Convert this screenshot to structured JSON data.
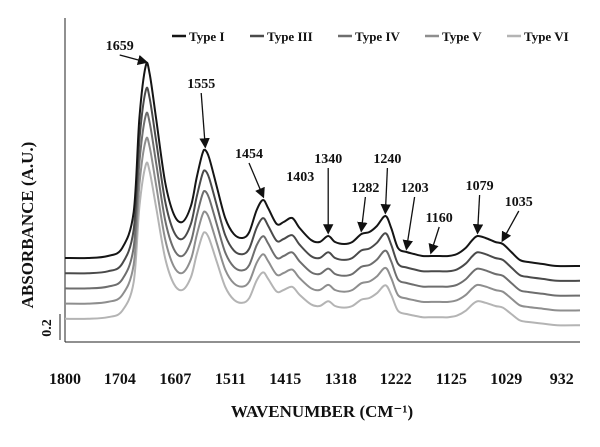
{
  "chart_data": {
    "type": "line",
    "title": "",
    "xlabel": "WAVENUMBER (CM⁻¹)",
    "ylabel": "ABSORBANCE (A.U.)",
    "scale_label": "0.2",
    "x_reversed": true,
    "xlim": [
      1800,
      900
    ],
    "x_ticks": [
      "1800",
      "1704",
      "1607",
      "1511",
      "1415",
      "1318",
      "1222",
      "1125",
      "1029",
      "932"
    ],
    "x_tick_values": [
      1800,
      1704,
      1607,
      1511,
      1415,
      1318,
      1222,
      1125,
      1029,
      932
    ],
    "legend_position": "top-right",
    "series": [
      {
        "name": "Type I",
        "color": "#151515",
        "offset": 0
      },
      {
        "name": "Type III",
        "color": "#4a4a4a",
        "offset": 1
      },
      {
        "name": "Type IV",
        "color": "#6e6e6e",
        "offset": 2
      },
      {
        "name": "Type V",
        "color": "#8e8e8e",
        "offset": 3
      },
      {
        "name": "Type VI",
        "color": "#b4b4b4",
        "offset": 4
      }
    ],
    "profile_x": [
      1800,
      1760,
      1725,
      1700,
      1680,
      1670,
      1659,
      1652,
      1640,
      1625,
      1610,
      1595,
      1580,
      1570,
      1560,
      1555,
      1548,
      1535,
      1520,
      1505,
      1490,
      1478,
      1465,
      1454,
      1445,
      1430,
      1418,
      1403,
      1390,
      1370,
      1355,
      1340,
      1328,
      1312,
      1298,
      1282,
      1268,
      1255,
      1240,
      1230,
      1218,
      1203,
      1190,
      1175,
      1160,
      1145,
      1130,
      1115,
      1100,
      1088,
      1079,
      1065,
      1048,
      1035,
      1020,
      1005,
      990,
      965,
      940,
      900
    ],
    "profile_y": [
      0.02,
      0.02,
      0.03,
      0.07,
      0.25,
      0.72,
      0.98,
      0.94,
      0.7,
      0.4,
      0.24,
      0.2,
      0.28,
      0.42,
      0.54,
      0.56,
      0.52,
      0.38,
      0.22,
      0.14,
      0.12,
      0.15,
      0.26,
      0.31,
      0.27,
      0.19,
      0.2,
      0.22,
      0.17,
      0.11,
      0.1,
      0.13,
      0.1,
      0.09,
      0.1,
      0.14,
      0.15,
      0.18,
      0.23,
      0.17,
      0.07,
      0.05,
      0.04,
      0.03,
      0.03,
      0.03,
      0.03,
      0.04,
      0.07,
      0.11,
      0.13,
      0.12,
      0.1,
      0.09,
      0.05,
      0.01,
      0.0,
      -0.01,
      -0.02,
      -0.02
    ],
    "annotations": [
      {
        "label": "1659",
        "x": 1659
      },
      {
        "label": "1555",
        "x": 1555
      },
      {
        "label": "1454",
        "x": 1454
      },
      {
        "label": "1403",
        "x": 1403
      },
      {
        "label": "1340",
        "x": 1340
      },
      {
        "label": "1282",
        "x": 1282
      },
      {
        "label": "1240",
        "x": 1240
      },
      {
        "label": "1203",
        "x": 1203
      },
      {
        "label": "1160",
        "x": 1160
      },
      {
        "label": "1079",
        "x": 1079
      },
      {
        "label": "1035",
        "x": 1035
      }
    ]
  }
}
